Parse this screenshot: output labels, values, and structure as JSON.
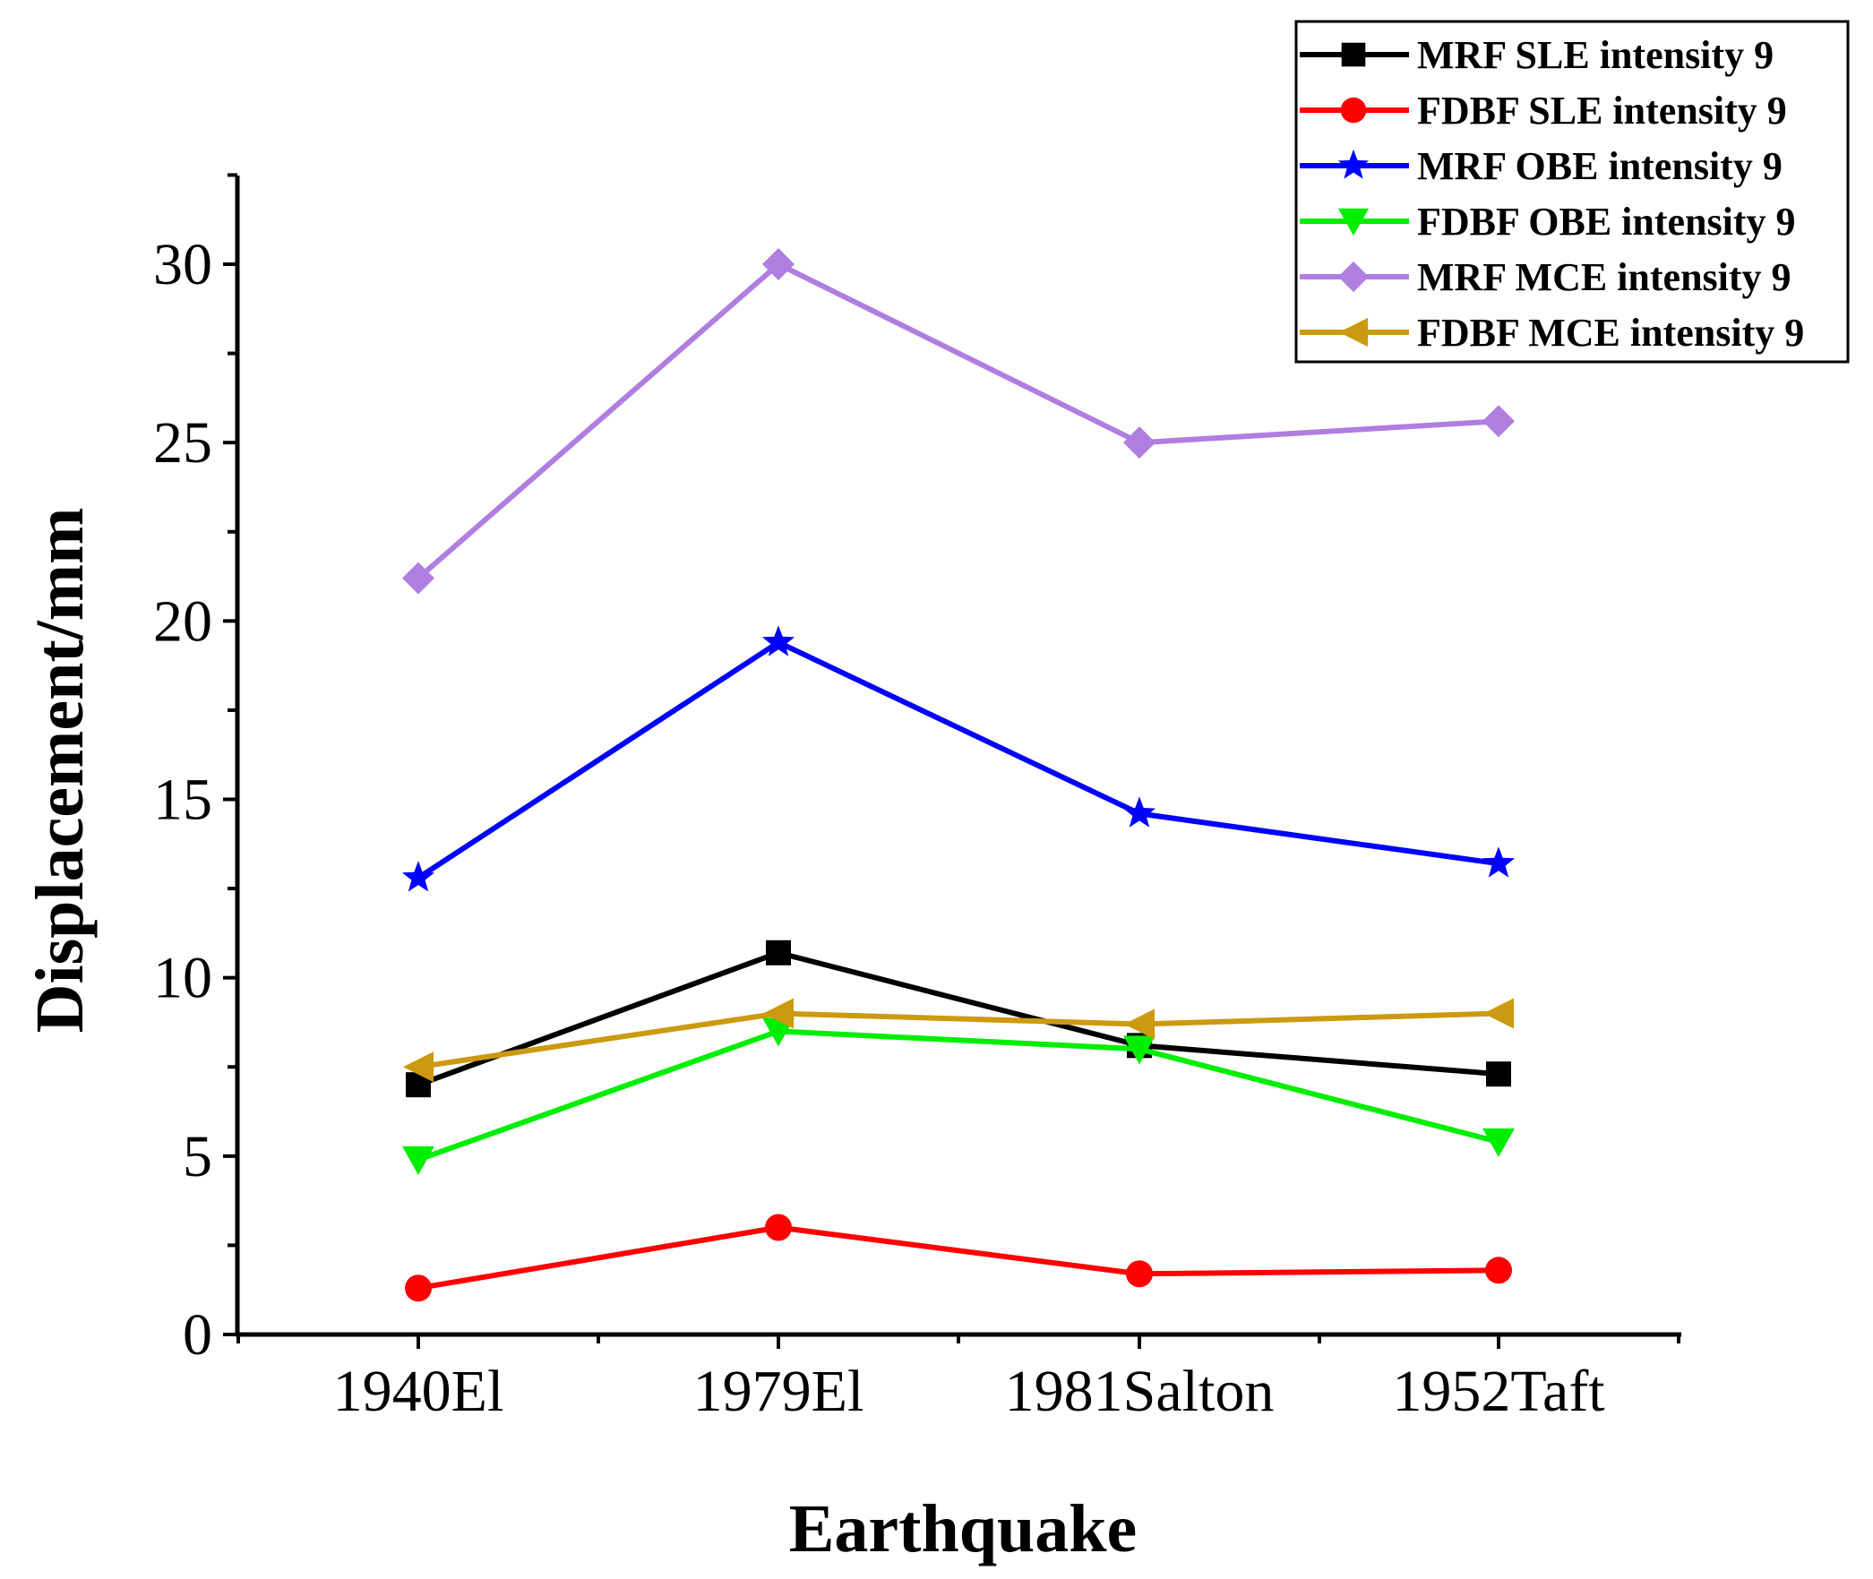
{
  "chart_data": {
    "type": "line",
    "title": "",
    "xlabel": "Earthquake",
    "ylabel": "Displacement/mm",
    "categories": [
      "1940El",
      "1979El",
      "1981Salton",
      "1952Taft"
    ],
    "ylim": [
      0,
      32.5
    ],
    "yticks": [
      0,
      5,
      10,
      15,
      20,
      25,
      30
    ],
    "ytick_labels": [
      "0",
      "5",
      "10",
      "15",
      "20",
      "25",
      "30"
    ],
    "grid": false,
    "legend_position": "top-right",
    "series": [
      {
        "name": "MRF SLE intensity 9",
        "color": "#000000",
        "marker": "square",
        "values": [
          7.0,
          10.7,
          8.1,
          7.3
        ]
      },
      {
        "name": "FDBF SLE intensity 9",
        "color": "#ff0000",
        "marker": "circle",
        "values": [
          1.3,
          3.0,
          1.7,
          1.8
        ]
      },
      {
        "name": "MRF OBE intensity 9",
        "color": "#0000ff",
        "marker": "star",
        "values": [
          12.8,
          19.4,
          14.6,
          13.2
        ]
      },
      {
        "name": "FDBF OBE intensity 9",
        "color": "#00ee00",
        "marker": "triangle-down",
        "values": [
          4.9,
          8.5,
          8.0,
          5.4
        ]
      },
      {
        "name": "MRF MCE intensity 9",
        "color": "#b07ee0",
        "marker": "diamond",
        "values": [
          21.2,
          30.0,
          25.0,
          25.6
        ]
      },
      {
        "name": "FDBF MCE intensity 9",
        "color": "#cc9a10",
        "marker": "triangle-left",
        "values": [
          7.5,
          9.0,
          8.7,
          9.0
        ]
      }
    ]
  }
}
